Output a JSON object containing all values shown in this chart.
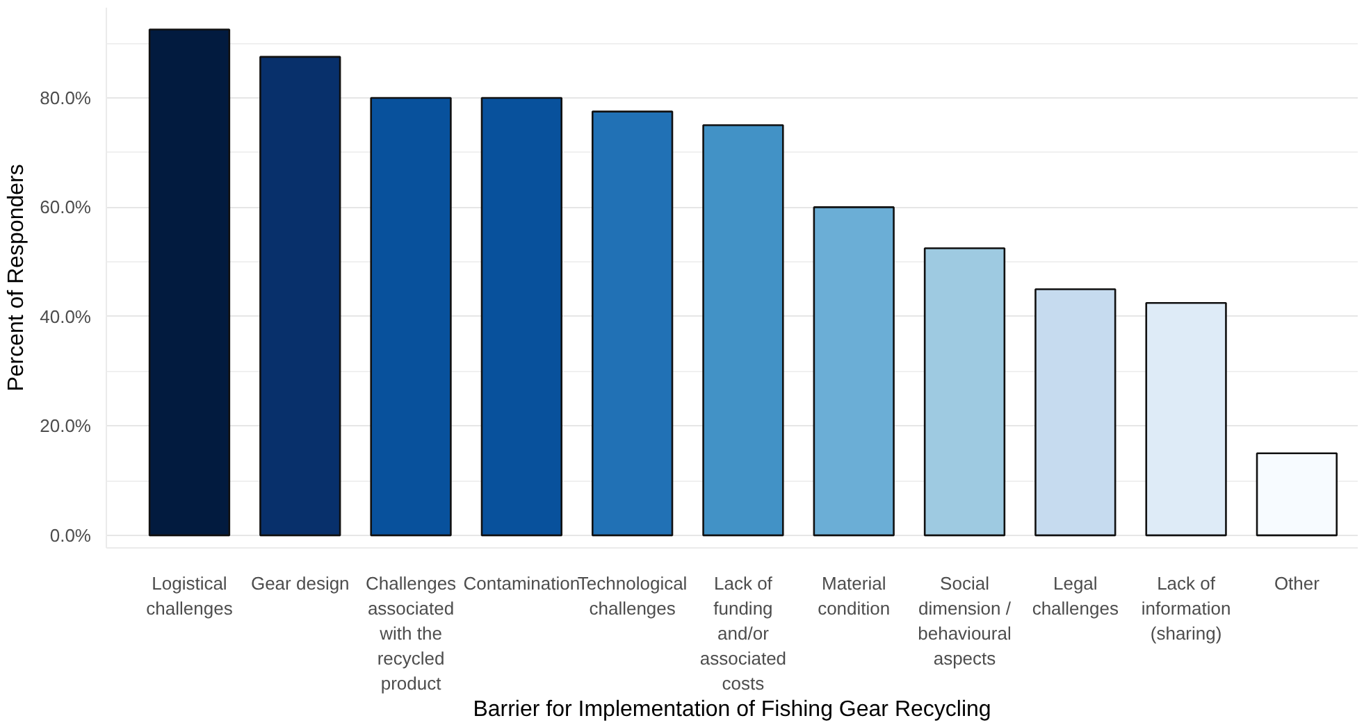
{
  "chart_data": {
    "type": "bar",
    "xlabel": "Barrier for Implementation of Fishing Gear Recycling",
    "ylabel": "Percent of Responders",
    "categories": [
      "Logistical challenges",
      "Gear design",
      "Challenges associated with the recycled product",
      "Contamination",
      "Technological challenges",
      "Lack of funding and/or associated costs",
      "Material condition",
      "Social dimension / behavioural aspects",
      "Legal challenges",
      "Lack of information (sharing)",
      "Other"
    ],
    "values": [
      92.5,
      87.5,
      80,
      80,
      77.5,
      75,
      60,
      52.5,
      45,
      42.5,
      15
    ],
    "colors": [
      "#021b3f",
      "#08306b",
      "#08519c",
      "#08519c",
      "#2171b5",
      "#4292c6",
      "#6baed6",
      "#9ecae1",
      "#c6dbef",
      "#deebf7",
      "#f7fbff"
    ],
    "ylim": [
      -2.3,
      96.5
    ],
    "yticks": [
      {
        "value": 0,
        "label": "0.0%"
      },
      {
        "value": 10,
        "label": null
      },
      {
        "value": 20,
        "label": "20.0%"
      },
      {
        "value": 30,
        "label": null
      },
      {
        "value": 40,
        "label": "40.0%"
      },
      {
        "value": 50,
        "label": null
      },
      {
        "value": 60,
        "label": "60.0%"
      },
      {
        "value": 70,
        "label": null
      },
      {
        "value": 80,
        "label": "80.0%"
      },
      {
        "value": 90,
        "label": null
      }
    ],
    "grid": "y"
  }
}
